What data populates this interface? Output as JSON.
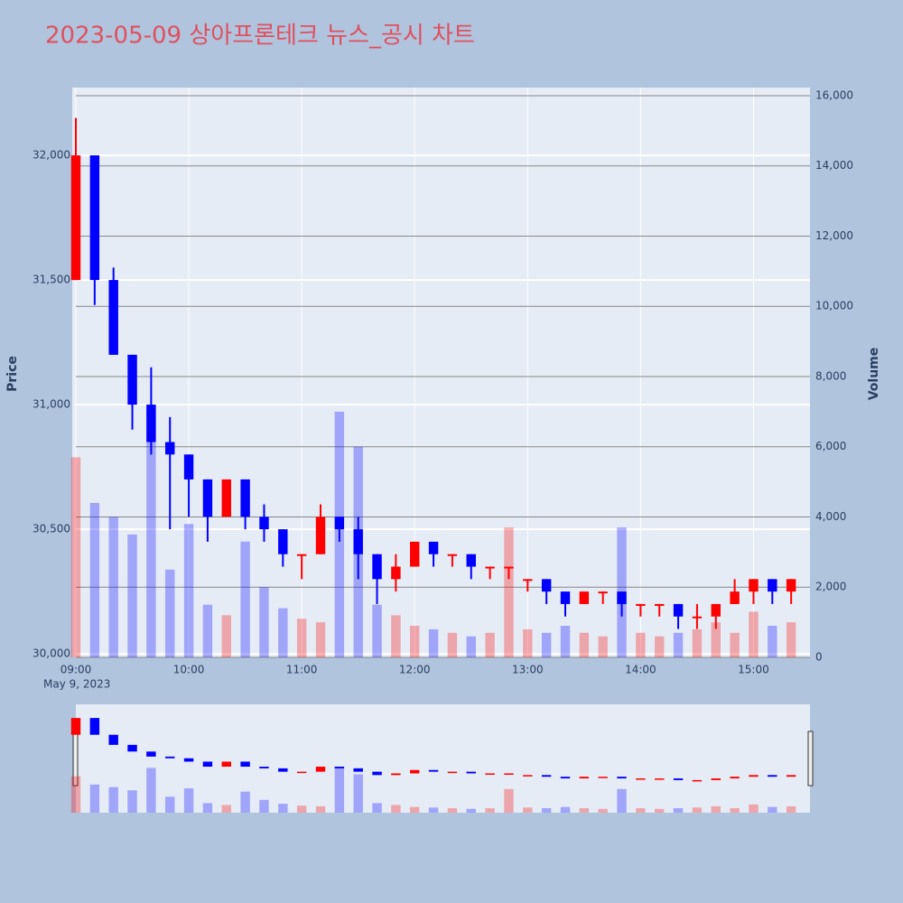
{
  "chart_data": {
    "type": "candlestick",
    "title": "2023-05-09 상아프론테크 뉴스_공시 차트",
    "x_date_label": "May 9, 2023",
    "y_title": "Price",
    "y2_title": "Volume",
    "increasing_color": "#ff0000",
    "decreasing_color": "#0000ff",
    "x": [
      "09:00",
      "09:10",
      "09:20",
      "09:30",
      "09:40",
      "09:50",
      "10:00",
      "10:10",
      "10:20",
      "10:30",
      "10:40",
      "10:50",
      "11:00",
      "11:10",
      "11:20",
      "11:30",
      "11:40",
      "11:50",
      "12:00",
      "12:10",
      "12:20",
      "12:30",
      "12:40",
      "12:50",
      "13:00",
      "13:10",
      "13:20",
      "13:30",
      "13:40",
      "13:50",
      "14:00",
      "14:10",
      "14:20",
      "14:30",
      "14:40",
      "14:50",
      "15:00",
      "15:10",
      "15:20"
    ],
    "open": [
      31500,
      32000,
      31500,
      31200,
      31000,
      30850,
      30800,
      30700,
      30550,
      30700,
      30550,
      30500,
      30400,
      30400,
      30550,
      30500,
      30400,
      30300,
      30350,
      30450,
      30400,
      30400,
      30350,
      30350,
      30300,
      30300,
      30250,
      30200,
      30250,
      30250,
      30200,
      30200,
      30200,
      30150,
      30150,
      30200,
      30250,
      30300,
      30250
    ],
    "high": [
      32150,
      32000,
      31550,
      31200,
      31150,
      30950,
      30800,
      30700,
      30700,
      30700,
      30600,
      30500,
      30400,
      30600,
      30550,
      30550,
      30400,
      30400,
      30450,
      30450,
      30400,
      30400,
      30350,
      30350,
      30300,
      30300,
      30250,
      30250,
      30250,
      30250,
      30200,
      30200,
      30200,
      30200,
      30200,
      30300,
      30300,
      30300,
      30300
    ],
    "low": [
      31500,
      31400,
      31200,
      30900,
      30800,
      30500,
      30550,
      30450,
      30550,
      30500,
      30450,
      30350,
      30300,
      30400,
      30450,
      30300,
      30200,
      30250,
      30350,
      30350,
      30350,
      30300,
      30300,
      30300,
      30250,
      30200,
      30150,
      30200,
      30200,
      30150,
      30150,
      30150,
      30100,
      30100,
      30100,
      30200,
      30200,
      30200,
      30200
    ],
    "close": [
      32000,
      31500,
      31200,
      31000,
      30850,
      30800,
      30700,
      30550,
      30700,
      30550,
      30500,
      30400,
      30400,
      30550,
      30500,
      30400,
      30300,
      30350,
      30450,
      30400,
      30400,
      30350,
      30350,
      30350,
      30300,
      30250,
      30200,
      30250,
      30250,
      30200,
      30200,
      30200,
      30150,
      30150,
      30200,
      30250,
      30300,
      30250,
      30300
    ],
    "volume": [
      5700,
      4400,
      4000,
      3500,
      7000,
      2500,
      3800,
      1500,
      1200,
      3300,
      2000,
      1400,
      1100,
      1000,
      7000,
      6000,
      1500,
      1200,
      900,
      800,
      700,
      600,
      700,
      3700,
      800,
      700,
      900,
      700,
      600,
      3700,
      700,
      600,
      700,
      800,
      1000,
      700,
      1300,
      900,
      1000
    ],
    "xlim": [
      "09:00",
      "15:30"
    ],
    "xticks": [
      "09:00",
      "10:00",
      "11:00",
      "12:00",
      "13:00",
      "14:00",
      "15:00"
    ],
    "ylim": [
      29986,
      32272
    ],
    "yticks": [
      {
        "value": 30000,
        "label": "30,000"
      },
      {
        "value": 30500,
        "label": "30,500"
      },
      {
        "value": 31000,
        "label": "31,000"
      },
      {
        "value": 31500,
        "label": "31,500"
      },
      {
        "value": 32000,
        "label": "32,000"
      }
    ],
    "y2lim": [
      0,
      16231
    ],
    "y2ticks": [
      0,
      {
        "value": 2000,
        "label": "2,000"
      },
      {
        "value": 4000,
        "label": "4,000"
      },
      {
        "value": 6000,
        "label": "6,000"
      },
      {
        "value": 8000,
        "label": "8,000"
      },
      {
        "value": 10000,
        "label": "10,000"
      },
      {
        "value": 12000,
        "label": "12,000"
      },
      {
        "value": 14000,
        "label": "14,000"
      },
      {
        "value": 16000,
        "label": "16,000"
      }
    ],
    "grid": true
  }
}
